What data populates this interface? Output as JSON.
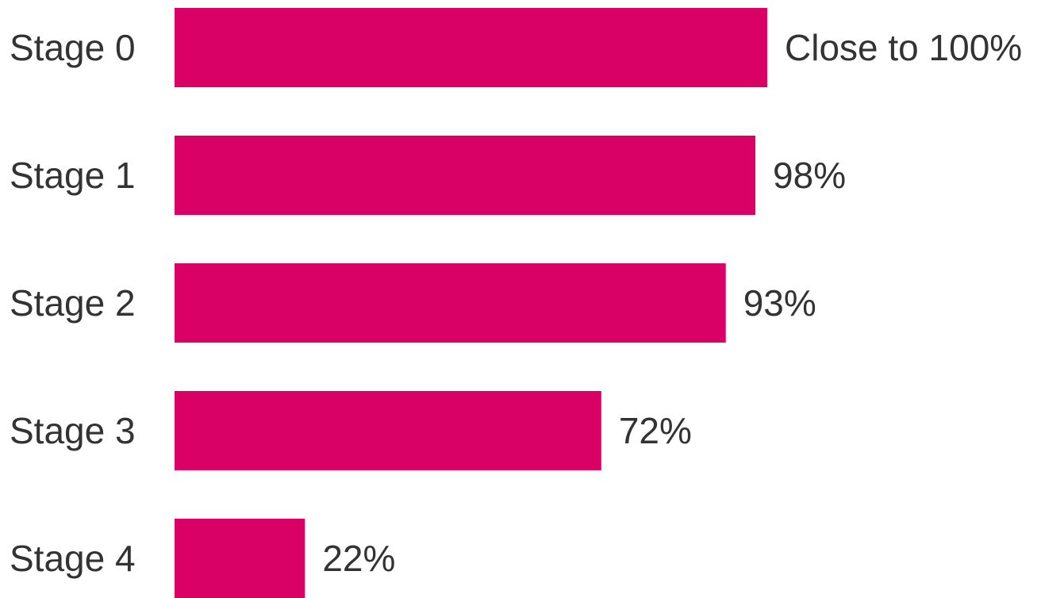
{
  "chart_data": {
    "type": "bar",
    "orientation": "horizontal",
    "categories": [
      "Stage 0",
      "Stage 1",
      "Stage 2",
      "Stage 3",
      "Stage 4"
    ],
    "values": [
      100,
      98,
      93,
      72,
      22
    ],
    "value_labels": [
      "Close to 100%",
      "98%",
      "93%",
      "72%",
      "22%"
    ],
    "xlim": [
      0,
      100
    ],
    "bar_color": "#d90066",
    "text_color": "#333333",
    "grid": false,
    "legend": "none"
  }
}
